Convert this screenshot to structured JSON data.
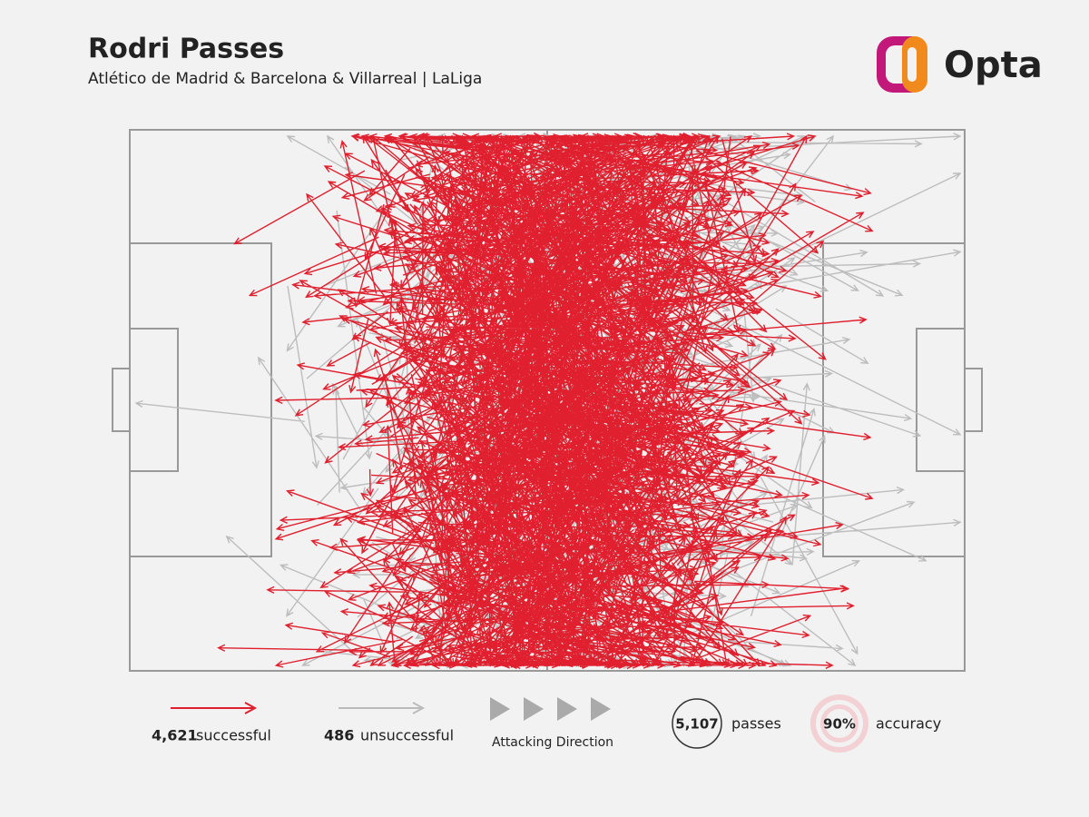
{
  "header": {
    "title": "Rodri Passes",
    "subtitle": "Atlético de Madrid & Barcelona & Villarreal | LaLiga",
    "brand": "Opta"
  },
  "legend": {
    "successful": {
      "count": "4,621",
      "label": "successful"
    },
    "unsuccessful": {
      "count": "486",
      "label": "unsuccessful"
    },
    "direction": "Attacking Direction",
    "passes": {
      "count": "5,107",
      "label": "passes"
    },
    "accuracy": {
      "count": "90%",
      "label": "accuracy"
    }
  }
}
